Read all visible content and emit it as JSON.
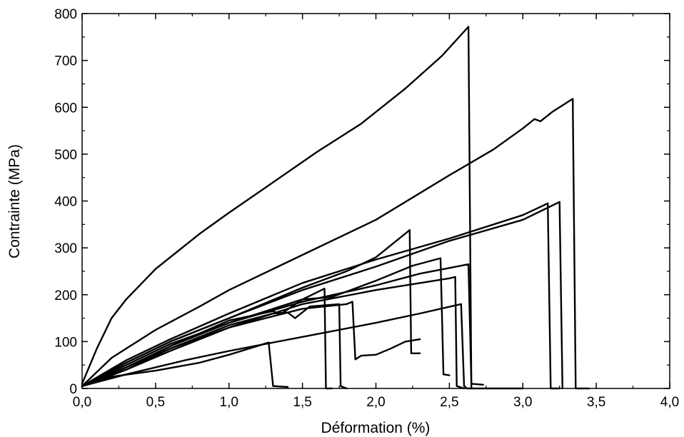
{
  "chart_data": {
    "type": "line",
    "title": "",
    "xlabel": "Déformation (%)",
    "ylabel": "Contrainte (MPa)",
    "xlim": [
      0,
      4.0
    ],
    "ylim": [
      0,
      800
    ],
    "xticks": [
      0,
      0.5,
      1.0,
      1.5,
      2.0,
      2.5,
      3.0,
      3.5,
      4.0
    ],
    "xtick_labels": [
      "0,0",
      "0,5",
      "1,0",
      "1,5",
      "2,0",
      "2,5",
      "3,0",
      "3,5",
      "4,0"
    ],
    "yticks": [
      0,
      100,
      200,
      300,
      400,
      500,
      600,
      700,
      800
    ],
    "ytick_labels": [
      "0",
      "100",
      "200",
      "300",
      "400",
      "500",
      "600",
      "700",
      "800"
    ],
    "grid": false,
    "legend": "none",
    "line_color": "#000000",
    "series": [
      {
        "points": [
          [
            0,
            10
          ],
          [
            0.1,
            85
          ],
          [
            0.2,
            150
          ],
          [
            0.3,
            190
          ],
          [
            0.5,
            255
          ],
          [
            0.8,
            330
          ],
          [
            1.0,
            375
          ],
          [
            1.3,
            440
          ],
          [
            1.6,
            505
          ],
          [
            1.9,
            565
          ],
          [
            2.2,
            640
          ],
          [
            2.45,
            710
          ],
          [
            2.63,
            772
          ],
          [
            2.65,
            0
          ]
        ]
      },
      {
        "points": [
          [
            0,
            5
          ],
          [
            0.2,
            65
          ],
          [
            0.5,
            125
          ],
          [
            0.8,
            175
          ],
          [
            1.0,
            210
          ],
          [
            1.5,
            285
          ],
          [
            2.0,
            360
          ],
          [
            2.5,
            455
          ],
          [
            2.8,
            510
          ],
          [
            3.0,
            555
          ],
          [
            3.08,
            575
          ],
          [
            3.12,
            570
          ],
          [
            3.2,
            590
          ],
          [
            3.34,
            618
          ],
          [
            3.36,
            0
          ],
          [
            3.45,
            0
          ]
        ]
      },
      {
        "points": [
          [
            0,
            5
          ],
          [
            0.3,
            60
          ],
          [
            0.6,
            105
          ],
          [
            1.0,
            160
          ],
          [
            1.5,
            225
          ],
          [
            2.0,
            275
          ],
          [
            2.5,
            320
          ],
          [
            3.0,
            370
          ],
          [
            3.17,
            395
          ],
          [
            3.19,
            0
          ],
          [
            3.25,
            0
          ]
        ]
      },
      {
        "points": [
          [
            0,
            5
          ],
          [
            0.3,
            55
          ],
          [
            0.6,
            100
          ],
          [
            1.0,
            150
          ],
          [
            1.5,
            210
          ],
          [
            2.0,
            260
          ],
          [
            2.5,
            315
          ],
          [
            3.0,
            360
          ],
          [
            3.25,
            398
          ],
          [
            3.27,
            0
          ]
        ]
      },
      {
        "points": [
          [
            0,
            5
          ],
          [
            0.3,
            55
          ],
          [
            0.6,
            100
          ],
          [
            1.0,
            150
          ],
          [
            1.5,
            215
          ],
          [
            1.8,
            250
          ],
          [
            2.0,
            280
          ],
          [
            2.23,
            338
          ],
          [
            2.24,
            75
          ],
          [
            2.3,
            75
          ]
        ]
      },
      {
        "points": [
          [
            0,
            5
          ],
          [
            0.3,
            45
          ],
          [
            0.6,
            90
          ],
          [
            1.0,
            140
          ],
          [
            1.5,
            190
          ],
          [
            1.7,
            195
          ],
          [
            2.0,
            230
          ],
          [
            2.25,
            262
          ],
          [
            2.44,
            278
          ],
          [
            2.46,
            30
          ],
          [
            2.5,
            28
          ]
        ]
      },
      {
        "points": [
          [
            0,
            5
          ],
          [
            0.3,
            50
          ],
          [
            0.6,
            95
          ],
          [
            1.0,
            140
          ],
          [
            1.5,
            185
          ],
          [
            2.0,
            220
          ],
          [
            2.3,
            245
          ],
          [
            2.63,
            265
          ],
          [
            2.65,
            10
          ],
          [
            2.73,
            8
          ]
        ]
      },
      {
        "points": [
          [
            0,
            5
          ],
          [
            0.3,
            45
          ],
          [
            0.6,
            85
          ],
          [
            1.0,
            130
          ],
          [
            1.5,
            180
          ],
          [
            2.0,
            210
          ],
          [
            2.5,
            235
          ],
          [
            2.54,
            238
          ],
          [
            2.55,
            5
          ],
          [
            2.6,
            0
          ]
        ]
      },
      {
        "points": [
          [
            0,
            5
          ],
          [
            0.3,
            40
          ],
          [
            0.6,
            80
          ],
          [
            1.0,
            130
          ],
          [
            1.5,
            170
          ],
          [
            1.8,
            180
          ],
          [
            1.84,
            185
          ],
          [
            1.86,
            62
          ],
          [
            1.9,
            70
          ],
          [
            2.0,
            72
          ],
          [
            2.1,
            85
          ],
          [
            2.2,
            100
          ],
          [
            2.3,
            105
          ]
        ]
      },
      {
        "points": [
          [
            0,
            5
          ],
          [
            0.3,
            40
          ],
          [
            0.6,
            85
          ],
          [
            1.0,
            135
          ],
          [
            1.3,
            160
          ],
          [
            1.4,
            162
          ],
          [
            1.45,
            150
          ],
          [
            1.55,
            175
          ],
          [
            1.75,
            180
          ],
          [
            1.76,
            5
          ],
          [
            1.8,
            0
          ]
        ]
      },
      {
        "points": [
          [
            0,
            5
          ],
          [
            0.3,
            45
          ],
          [
            0.6,
            90
          ],
          [
            1.0,
            145
          ],
          [
            1.3,
            165
          ],
          [
            1.35,
            158
          ],
          [
            1.5,
            190
          ],
          [
            1.65,
            213
          ],
          [
            1.66,
            0
          ],
          [
            1.7,
            0
          ]
        ]
      },
      {
        "points": [
          [
            0,
            5
          ],
          [
            0.2,
            25
          ],
          [
            0.5,
            38
          ],
          [
            0.8,
            55
          ],
          [
            1.0,
            72
          ],
          [
            1.27,
            98
          ],
          [
            1.3,
            5
          ],
          [
            1.4,
            3
          ]
        ]
      },
      {
        "points": [
          [
            0,
            5
          ],
          [
            0.3,
            30
          ],
          [
            0.7,
            60
          ],
          [
            1.0,
            80
          ],
          [
            1.5,
            110
          ],
          [
            2.0,
            140
          ],
          [
            2.3,
            160
          ],
          [
            2.58,
            180
          ],
          [
            2.6,
            5
          ],
          [
            2.62,
            0
          ],
          [
            3.0,
            0
          ]
        ]
      }
    ]
  }
}
